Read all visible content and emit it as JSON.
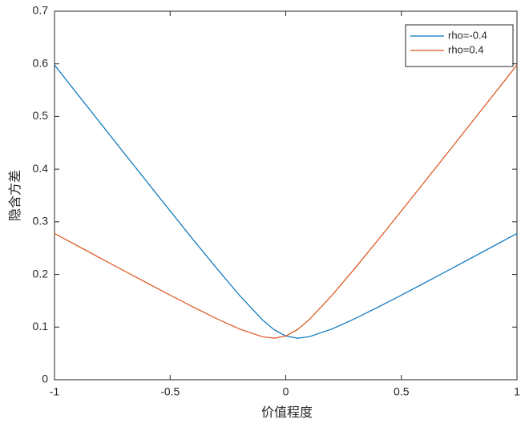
{
  "chart_data": {
    "type": "line",
    "xlabel": "价值程度",
    "ylabel": "隐含方差",
    "x": [
      -1,
      -0.9,
      -0.8,
      -0.7,
      -0.6,
      -0.5,
      -0.4,
      -0.3,
      -0.2,
      -0.1,
      -0.05,
      0,
      0.05,
      0.1,
      0.2,
      0.3,
      0.4,
      0.5,
      0.6,
      0.7,
      0.8,
      0.9,
      1
    ],
    "series": [
      {
        "name": "rho=-0.4",
        "color": "#0072BD",
        "values": [
          0.5979,
          0.5422,
          0.4866,
          0.4311,
          0.3758,
          0.3207,
          0.266,
          0.2122,
          0.1603,
          0.1135,
          0.095,
          0.083,
          0.079,
          0.0815,
          0.0963,
          0.1162,
          0.138,
          0.1607,
          0.1838,
          0.2071,
          0.2306,
          0.2542,
          0.2779
        ]
      },
      {
        "name": "rho=0.4",
        "color": "#D95319",
        "values": [
          0.2779,
          0.2542,
          0.2306,
          0.2071,
          0.1838,
          0.1607,
          0.138,
          0.1162,
          0.0963,
          0.0815,
          0.079,
          0.083,
          0.095,
          0.1135,
          0.1603,
          0.2122,
          0.266,
          0.3207,
          0.3758,
          0.4311,
          0.4866,
          0.5422,
          0.5979
        ]
      }
    ],
    "xlim": [
      -1,
      1
    ],
    "xticks": [
      -1,
      -0.5,
      0,
      0.5,
      1
    ],
    "ylim": [
      0,
      0.7
    ],
    "yticks": [
      0,
      0.1,
      0.2,
      0.3,
      0.4,
      0.5,
      0.6,
      0.7
    ],
    "legend": "top-right"
  }
}
